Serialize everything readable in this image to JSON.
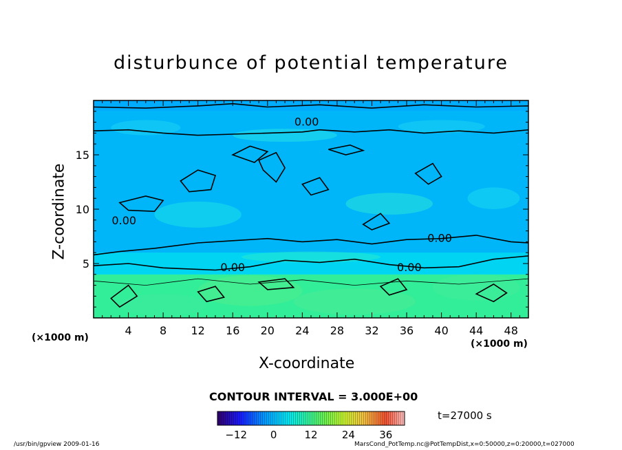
{
  "figure": {
    "title": "disturbunce of potential temperature",
    "xlabel": "X-coordinate",
    "ylabel": "Z-coordinate",
    "x_unit_left": "(×1000 m)",
    "x_unit_right": "(×1000 m)",
    "contour_interval": "CONTOUR INTERVAL = 3.000E+00",
    "time": "t=27000 s",
    "footer_left": "/usr/bin/gpview   2009-01-16",
    "footer_right": "MarsCond_PotTemp.nc@PotTempDist,x=0:50000,z=0:20000,t=027000",
    "contour_labels": [
      "0.00",
      "0.00",
      "0.00",
      "0.00",
      "0.00"
    ]
  },
  "chart_data": {
    "type": "heatmap",
    "title": "disturbunce of potential temperature",
    "xlabel": "X-coordinate",
    "ylabel": "Z-coordinate",
    "xlim": [
      0,
      50
    ],
    "ylim": [
      0,
      20
    ],
    "x_ticks": [
      4,
      8,
      12,
      16,
      20,
      24,
      28,
      32,
      36,
      40,
      44,
      48
    ],
    "y_ticks": [
      5,
      10,
      15
    ],
    "colorbar": {
      "ticks": [
        -12,
        0,
        12,
        24,
        36
      ],
      "range": [
        -18,
        42
      ]
    },
    "contour_interval": 3.0,
    "contour_level_labeled": 0.0,
    "bands": [
      {
        "z_range": [
          0,
          4
        ],
        "approx_value": 6
      },
      {
        "z_range": [
          4,
          6
        ],
        "approx_value": 3
      },
      {
        "z_range": [
          6,
          19
        ],
        "approx_value": 0
      },
      {
        "z_range": [
          19,
          20
        ],
        "approx_value": -1
      }
    ],
    "colors": {
      "upper_region": "#00f2f2",
      "lower_region": "#33ee99",
      "contour": "#000000"
    }
  }
}
